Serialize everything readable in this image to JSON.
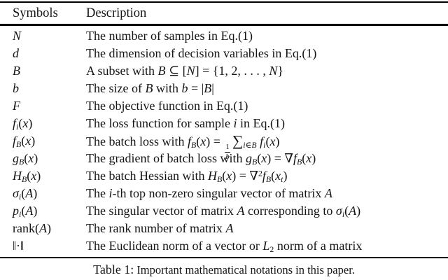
{
  "page": {
    "background": "#ffffff",
    "text_color": "#141414",
    "rule_color": "#000000"
  },
  "table": {
    "header": {
      "symbols": "Symbols",
      "description": "Description"
    },
    "rows": [
      {
        "symbol": "<i>N</i>",
        "description": "The number of samples in Eq.(1)"
      },
      {
        "symbol": "<i>d</i>",
        "description": "The dimension of decision variables in Eq.(1)"
      },
      {
        "symbol": "<i>B</i>",
        "description": "A subset with <i>B</i> ⊆ [<i>N</i>] = {1, 2, . . . , <i>N</i>}"
      },
      {
        "symbol": "<i>b</i>",
        "description": "The size of <i>B</i> with <i>b</i> = |<i>B</i>|"
      },
      {
        "symbol": "<i>F</i>",
        "description": "The objective function in Eq.(1)"
      },
      {
        "symbol": "<i>f</i><sub><i>i</i></sub>(<i>x</i>)",
        "description": "The loss function for sample <i>i</i> in Eq.(1)"
      },
      {
        "symbol": "<i>f</i><sub><i>B</i></sub>(<i>x</i>)",
        "description": "The batch loss with <i>f</i><sub><i>B</i></sub>(<i>x</i>) = <span class='frac'><span class='num'>1</span><span class='den'><i>b</i></span></span><span class='sum'>∑</span><sub><i>i</i>∈<i>B</i></sub> <i>f</i><sub><i>i</i></sub>(<i>x</i>)"
      },
      {
        "symbol": "<i>g</i><sub><i>B</i></sub>(<i>x</i>)",
        "description": "The gradient of batch loss with <i>g</i><sub><i>B</i></sub>(<i>x</i>) = ∇<i>f</i><sub><i>B</i></sub>(<i>x</i>)"
      },
      {
        "symbol": "<i>H</i><sub><i>B</i></sub>(<i>x</i>)",
        "description": "The batch Hessian with <i>H</i><sub><i>B</i></sub>(<i>x</i>) = ∇<sup>2</sup><i>f</i><sub><i>B</i></sub>(<i>x</i><sub><i>t</i></sub>)"
      },
      {
        "symbol": "<i>σ</i><sub><i>i</i></sub>(<i>A</i>)",
        "description": "The <i>i</i>-th top non-zero singular vector of matrix <i>A</i>"
      },
      {
        "symbol": "<i>p</i><sub><i>i</i></sub>(<i>A</i>)",
        "description": "The singular vector of matrix <i>A</i> corresponding to <i>σ</i><sub><i>i</i></sub>(<i>A</i>)"
      },
      {
        "symbol": "rank(<i>A</i>)",
        "description": "The rank number of matrix <i>A</i>"
      },
      {
        "symbol": "‖·‖",
        "description": "The Euclidean norm of a vector or <i>L</i><sub>2</sub> norm of a matrix"
      }
    ]
  },
  "caption": {
    "label": "Table 1:",
    "text": "Important mathematical notations in this paper."
  }
}
